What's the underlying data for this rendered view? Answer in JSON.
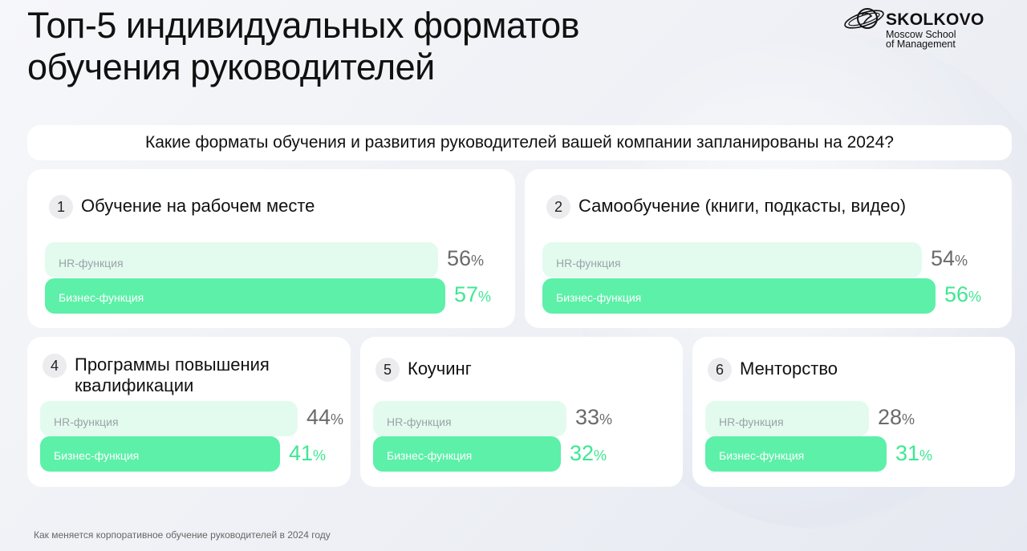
{
  "header": {
    "title_line1": "Топ-5 индивидуальных форматов",
    "title_line2": "обучения руководителей"
  },
  "logo": {
    "name": "SKOLKOVO",
    "sub_line1": "Moscow School",
    "sub_line2": "of Management"
  },
  "question": "Какие форматы обучения и развития руководителей вашей компании запланированы на 2024?",
  "series_labels": {
    "hr": "HR-функция",
    "biz": "Бизнес-функция"
  },
  "colors": {
    "hr_bar": "#e3fbef",
    "biz_bar": "#5cf0a8",
    "biz_value": "#3ee892",
    "hr_value": "#6a6a6a"
  },
  "chart_data": {
    "type": "bar",
    "title": "Какие форматы обучения и развития руководителей вашей компании запланированы на 2024?",
    "categories": [
      "Обучение на рабочем месте",
      "Самообучение (книги, подкасты, видео)",
      "Программы повышения квалификации",
      "Коучинг",
      "Менторство"
    ],
    "series": [
      {
        "name": "HR-функция",
        "values": [
          56,
          54,
          44,
          33,
          28
        ]
      },
      {
        "name": "Бизнес-функция",
        "values": [
          57,
          56,
          41,
          32,
          31
        ]
      }
    ],
    "unit": "%",
    "ylim": [
      0,
      100
    ]
  },
  "cards": [
    {
      "num": "1",
      "title": "Обучение на рабочем месте",
      "hr_value": "56",
      "biz_value": "57",
      "hr": 56,
      "biz": 57
    },
    {
      "num": "2",
      "title": "Самообучение (книги, подкасты, видео)",
      "hr_value": "54",
      "biz_value": "56",
      "hr": 54,
      "biz": 56
    },
    {
      "num": "4",
      "title_line1": "Программы повышения",
      "title_line2": "квалификации",
      "hr_value": "44",
      "biz_value": "41",
      "hr": 44,
      "biz": 41
    },
    {
      "num": "5",
      "title": "Коучинг",
      "hr_value": "33",
      "biz_value": "32",
      "hr": 33,
      "biz": 32
    },
    {
      "num": "6",
      "title": "Менторство",
      "hr_value": "28",
      "biz_value": "31",
      "hr": 28,
      "biz": 31
    }
  ],
  "pct_sign": "%",
  "footer": "Как меняется корпоративное обучение руководителей в 2024 году"
}
